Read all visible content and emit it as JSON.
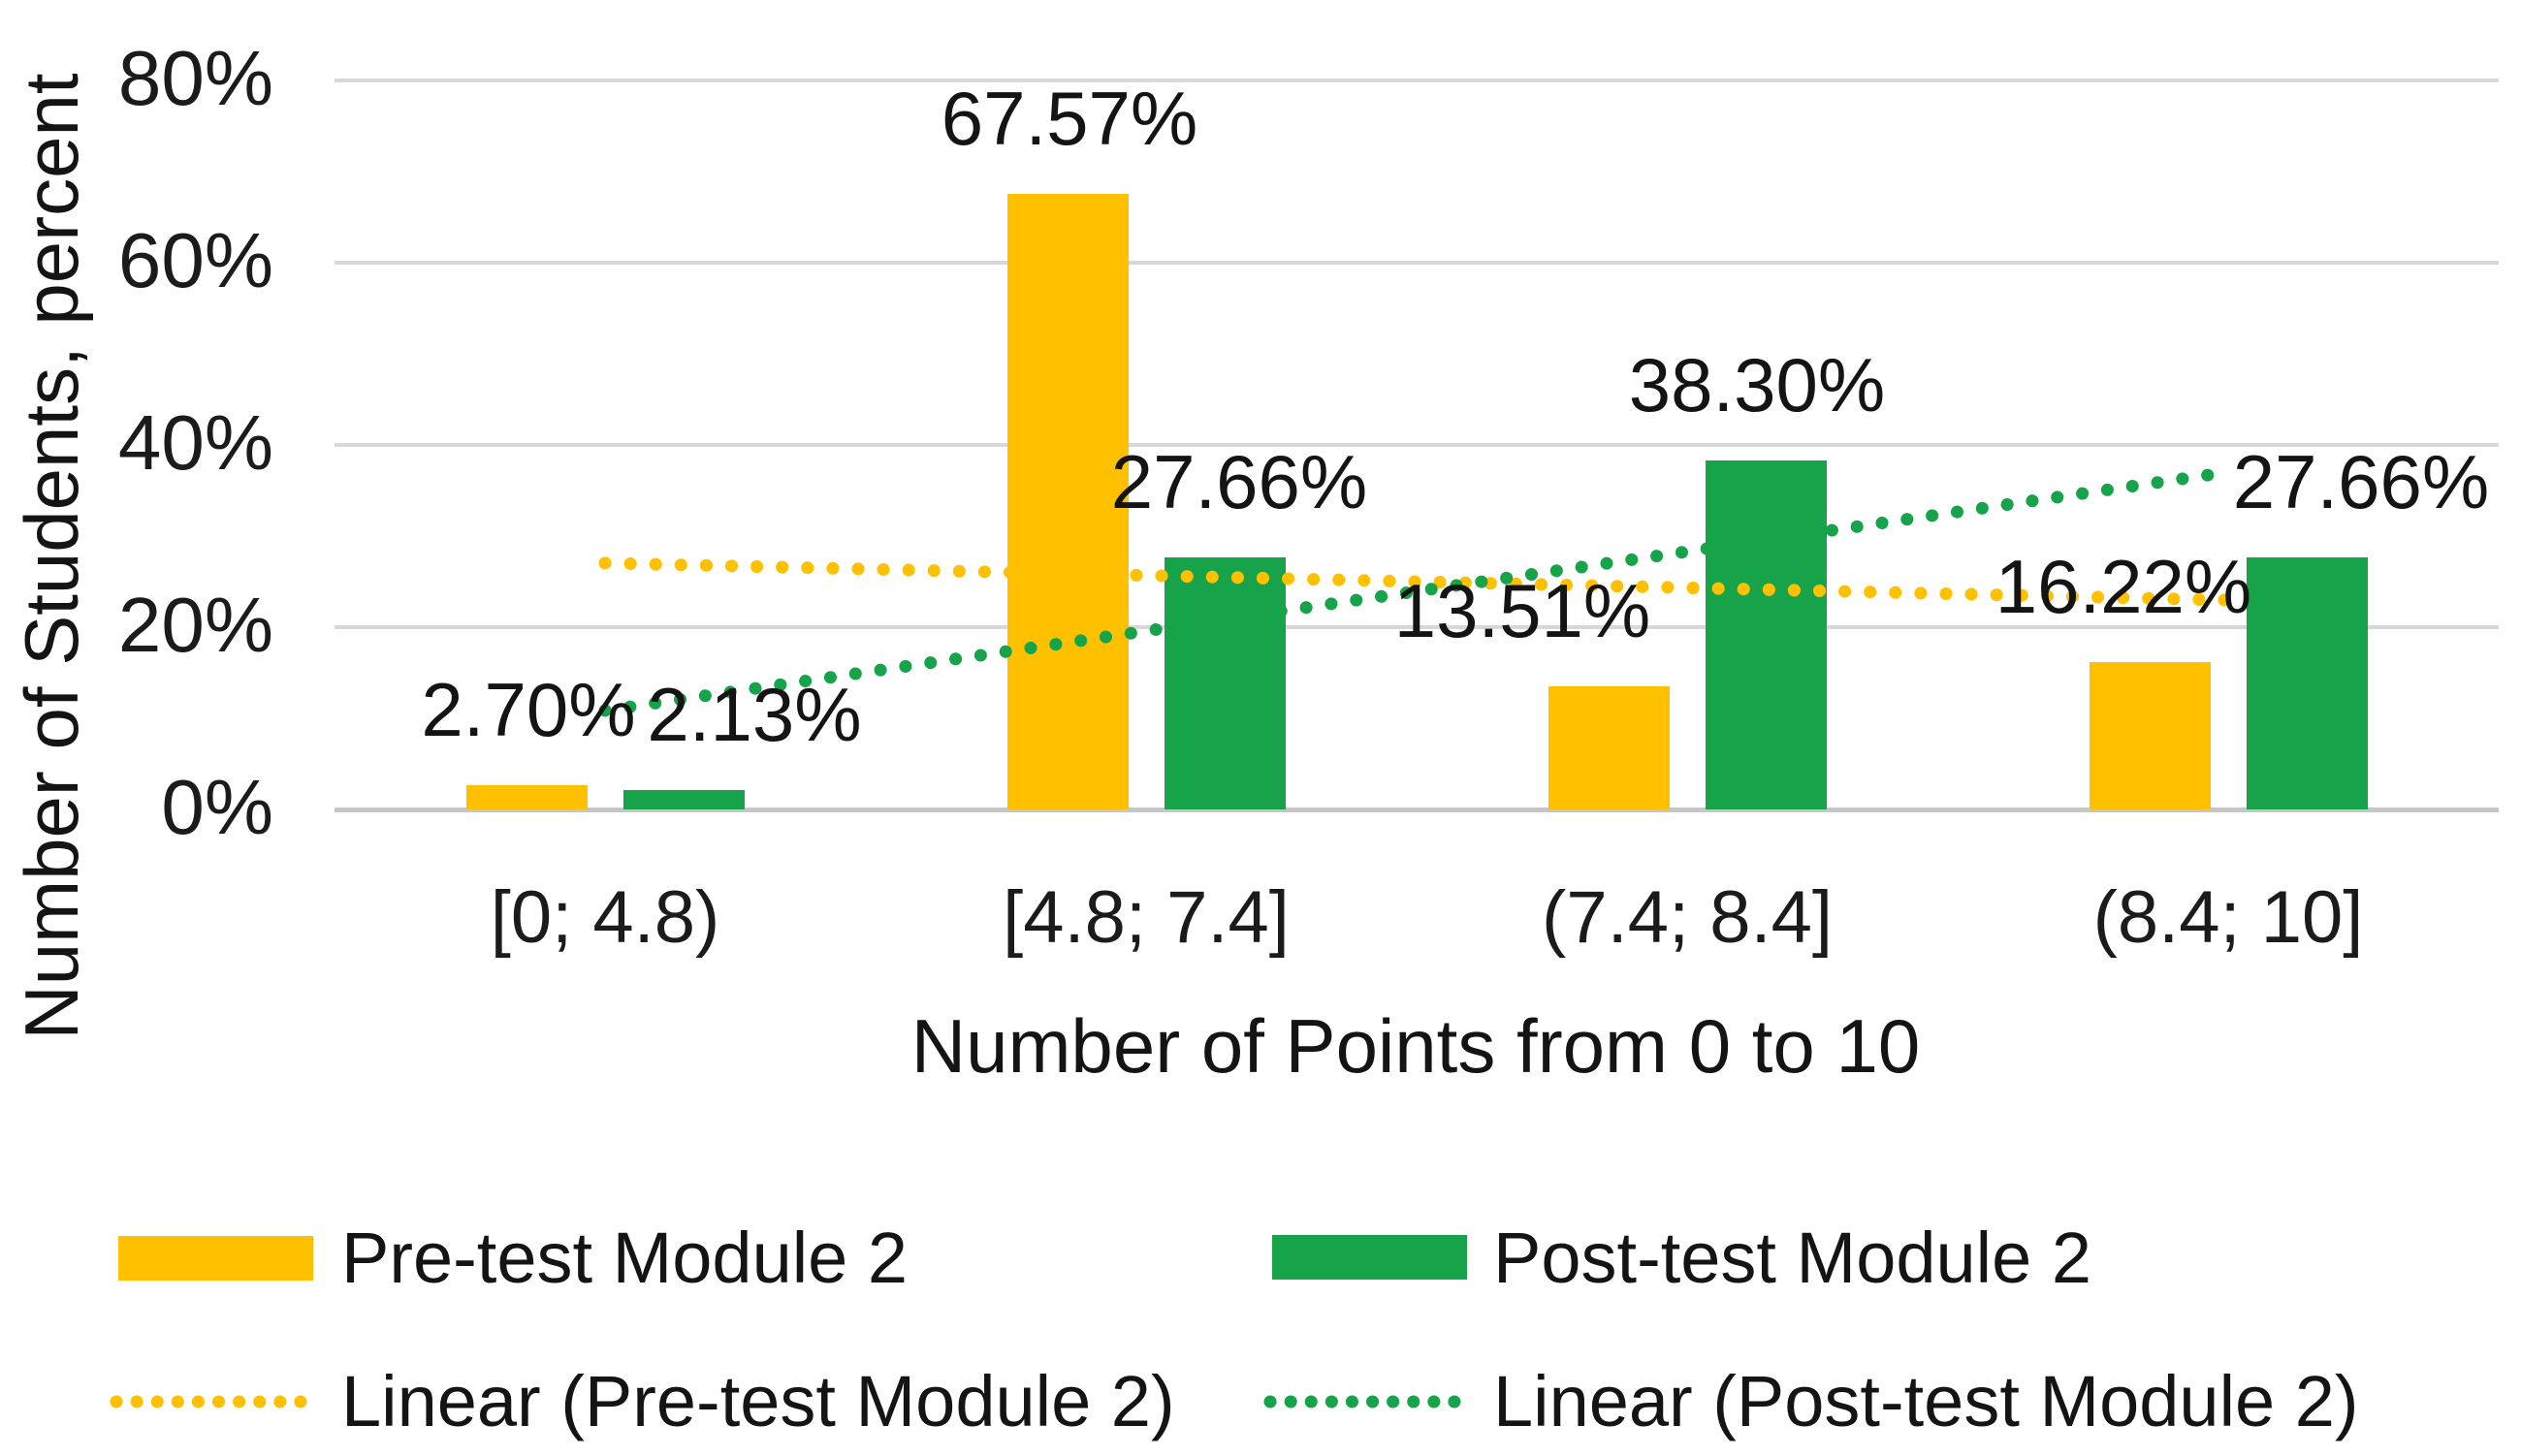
{
  "chart_data": {
    "type": "bar",
    "title": "",
    "xlabel": "Number of Points from 0 to 10",
    "ylabel": "Number of Students, percent",
    "categories": [
      "[0; 4.8)",
      "[4.8; 7.4]",
      "(7.4; 8.4]",
      "(8.4; 10]"
    ],
    "series": [
      {
        "name": "Pre-test Module 2",
        "color": "#FFC000",
        "values": [
          2.7,
          67.57,
          13.51,
          16.22
        ],
        "labels": [
          "2.70%",
          "67.57%",
          "13.51%",
          "16.22%"
        ]
      },
      {
        "name": "Post-test Module 2",
        "color": "#16A34A",
        "values": [
          2.13,
          27.66,
          38.3,
          27.66
        ],
        "labels": [
          "2.13%",
          "27.66%",
          "38.30%",
          "27.66%"
        ]
      }
    ],
    "trendlines": [
      {
        "name": "Linear (Pre-test Module 2)",
        "color": "#FFC000",
        "start_percent": 27.03,
        "end_percent": 22.97
      },
      {
        "name": "Linear (Post-test Module 2)",
        "color": "#16A34A",
        "start_percent": 10.86,
        "end_percent": 37.02
      }
    ],
    "ylim": [
      0,
      80
    ],
    "yticks": [
      "0%",
      "20%",
      "40%",
      "60%",
      "80%"
    ],
    "grid": true,
    "legend_position": "bottom"
  },
  "legend": {
    "pre_bar_label": "Pre-test Module 2",
    "post_bar_label": "Post-test Module 2",
    "pre_line_label": "Linear (Pre-test Module 2)",
    "post_line_label": "Linear (Post-test Module 2)",
    "pre_color": "#FFC000",
    "post_color": "#16A34A"
  }
}
